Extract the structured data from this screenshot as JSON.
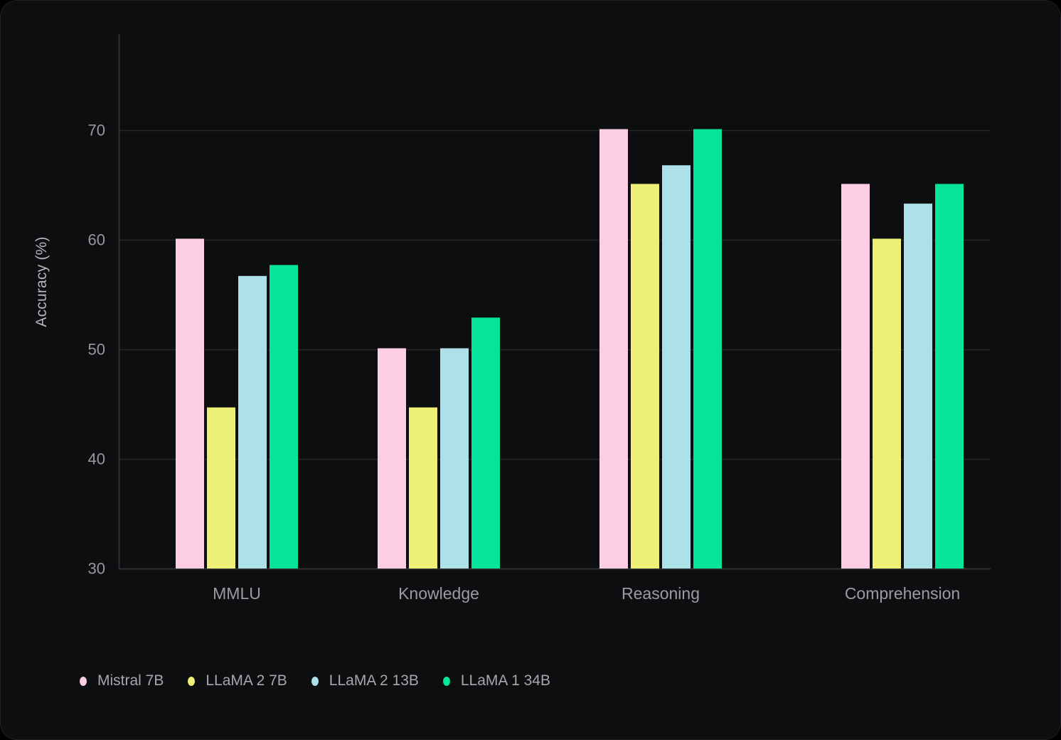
{
  "chart_data": {
    "type": "bar",
    "title": "",
    "ylabel": "Accuracy (%)",
    "xlabel": "",
    "ylim": [
      30,
      78.8
    ],
    "yticks": [
      30,
      40,
      50,
      60,
      70
    ],
    "gridline_values": [
      40,
      50,
      60,
      70
    ],
    "grid": "horizontal gridlines on, dark theme",
    "legend_position": "bottom-left",
    "categories": [
      "MMLU",
      "Knowledge",
      "Reasoning",
      "Comprehension"
    ],
    "series": [
      {
        "name": "Mistral 7B",
        "color": "#fccde3",
        "values": [
          60.1,
          50.1,
          70.1,
          65.1
        ]
      },
      {
        "name": "LLaMA 2 7B",
        "color": "#edf074",
        "values": [
          44.7,
          44.7,
          65.1,
          60.1
        ]
      },
      {
        "name": "LLaMA 2 13B",
        "color": "#ade0e9",
        "values": [
          56.7,
          50.1,
          66.8,
          63.3
        ]
      },
      {
        "name": "LLaMA 1 34B",
        "color": "#05e49b",
        "values": [
          57.7,
          52.9,
          70.1,
          65.1
        ]
      }
    ]
  },
  "colors": {
    "page_bg": "#000000",
    "card_bg": "#0d0e10",
    "card_border": "#1e2023",
    "grid_line": "#242628",
    "axis_line": "#2d3033",
    "tick_label": "#97989f",
    "category_label": "#9b9ca3",
    "axis_title": "#b4b5bb",
    "legend_text": "#a6a7ad"
  }
}
